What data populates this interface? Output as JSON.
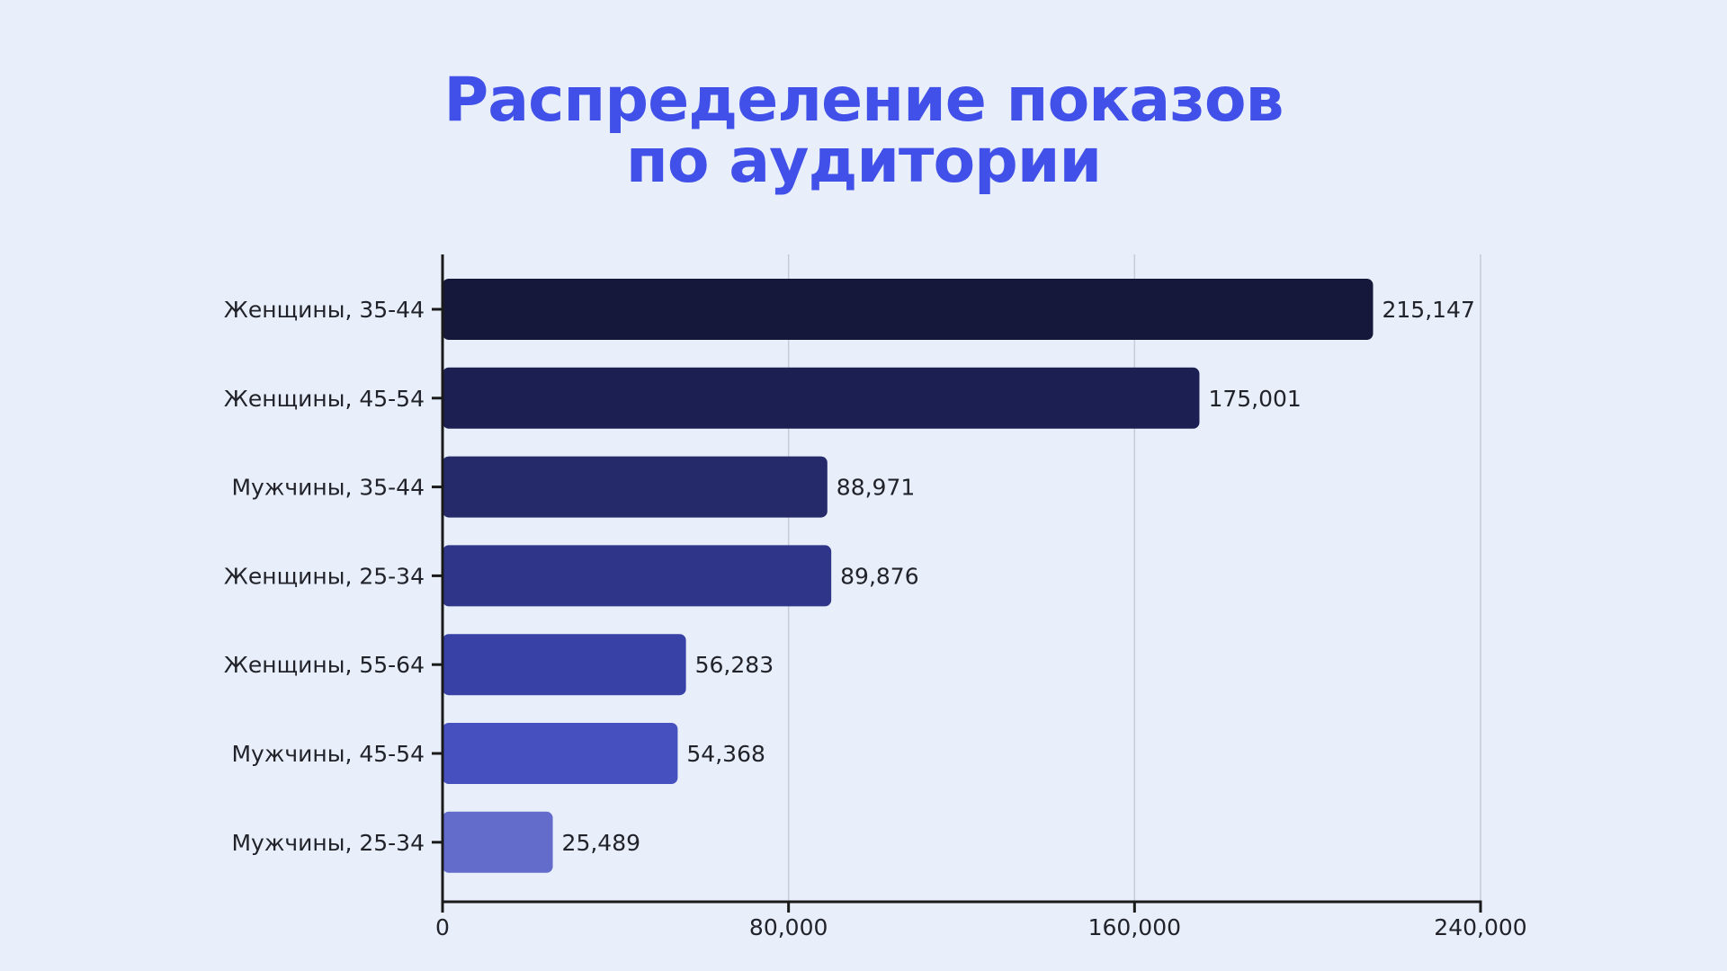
{
  "chart_data": {
    "type": "bar",
    "orientation": "horizontal",
    "title": "Распределение показов по аудитории",
    "title_lines": [
      "Распределение показов",
      "по аудитории"
    ],
    "categories": [
      "Женщины, 35-44",
      "Женщины, 45-54",
      "Мужчины, 35-44",
      "Женщины, 25-34",
      "Женщины, 55-64",
      "Мужчины, 45-54",
      "Мужчины, 25-34"
    ],
    "values": [
      215147,
      175001,
      88971,
      89876,
      56283,
      54368,
      25489
    ],
    "value_labels": [
      "215,147",
      "175,001",
      "88,971",
      "89,876",
      "56,283",
      "54,368",
      "25,489"
    ],
    "bar_colors": [
      "#15183a",
      "#1c1f52",
      "#252a6b",
      "#2f3588",
      "#3841a6",
      "#4750bf",
      "#636bcb"
    ],
    "xlim": [
      0,
      240000
    ],
    "xticks": [
      0,
      80000,
      160000,
      240000
    ],
    "xtick_labels": [
      "0",
      "80,000",
      "160,000",
      "240,000"
    ],
    "xlabel": "",
    "ylabel": "",
    "grid": "vertical",
    "legend": "none",
    "colors": {
      "title": "#4150e8",
      "background": "#e8effa",
      "axis": "#1a1a1a",
      "grid": "#c7ccd6",
      "text": "#22232a"
    }
  }
}
